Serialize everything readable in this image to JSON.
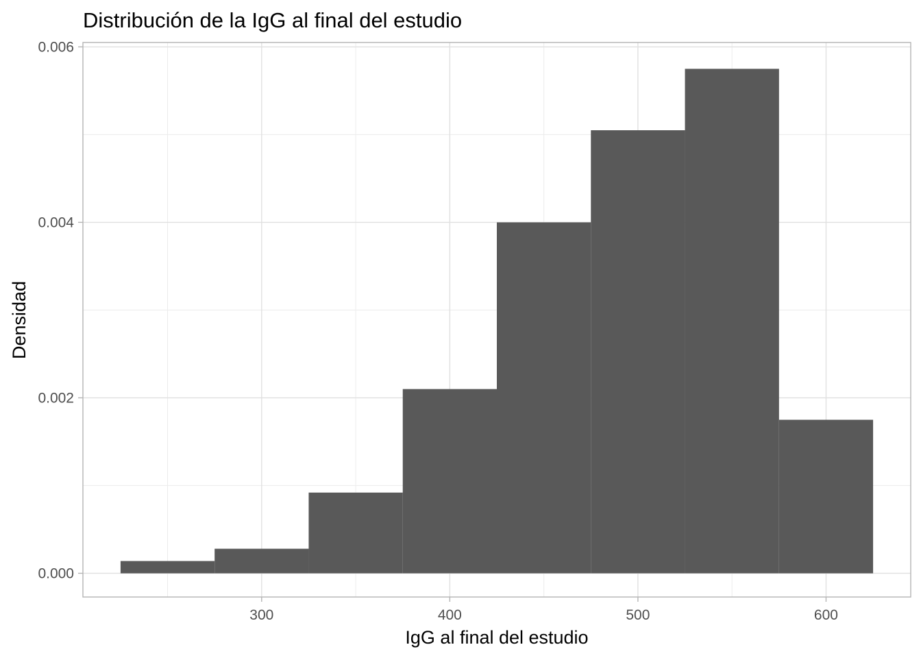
{
  "chart_data": {
    "type": "bar",
    "subtype": "histogram",
    "title": "Distribución de la IgG al final del estudio",
    "xlabel": "IgG al final del estudio",
    "ylabel": "Densidad",
    "bins": [
      {
        "x0": 225,
        "x1": 275,
        "density": 0.00014
      },
      {
        "x0": 275,
        "x1": 325,
        "density": 0.00028
      },
      {
        "x0": 325,
        "x1": 375,
        "density": 0.00092
      },
      {
        "x0": 375,
        "x1": 425,
        "density": 0.0021
      },
      {
        "x0": 425,
        "x1": 475,
        "density": 0.004
      },
      {
        "x0": 475,
        "x1": 525,
        "density": 0.00505
      },
      {
        "x0": 525,
        "x1": 575,
        "density": 0.00575
      },
      {
        "x0": 575,
        "x1": 625,
        "density": 0.00175
      }
    ],
    "xlim": [
      205,
      645
    ],
    "ylim": [
      -0.00027,
      0.00605
    ],
    "x_ticks": [
      "300",
      "400",
      "500",
      "600"
    ],
    "y_ticks": [
      "0.000",
      "0.002",
      "0.004",
      "0.006"
    ],
    "grid": true,
    "bar_color": "#595959",
    "theme": "light"
  }
}
